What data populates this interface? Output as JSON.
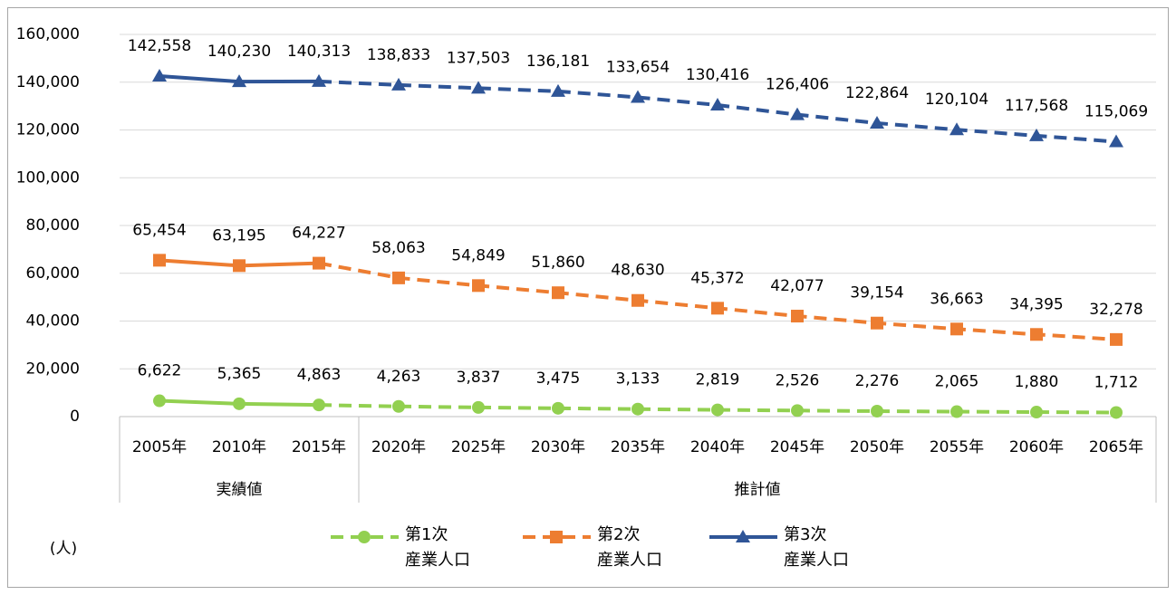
{
  "chart_data": {
    "type": "line",
    "categories": [
      "2005年",
      "2010年",
      "2015年",
      "2020年",
      "2025年",
      "2030年",
      "2035年",
      "2040年",
      "2045年",
      "2050年",
      "2055年",
      "2060年",
      "2065年"
    ],
    "groups": [
      {
        "label": "実績値",
        "count": 3
      },
      {
        "label": "推計値",
        "count": 10
      }
    ],
    "y_label": "(人)",
    "ylim": [
      0,
      160000
    ],
    "yticks": [
      0,
      {
        "value": 20000,
        "label": "20,000"
      },
      {
        "value": 40000,
        "label": "40,000"
      },
      {
        "value": 60000,
        "label": "60,000"
      },
      {
        "value": 80000,
        "label": "80,000"
      },
      {
        "value": 100000,
        "label": "100,000"
      },
      {
        "value": 120000,
        "label": "120,000"
      },
      {
        "value": 140000,
        "label": "140,000"
      },
      {
        "value": 160000,
        "label": "160,000"
      }
    ],
    "grid": true,
    "series": [
      {
        "name": "第1次\n産業人口",
        "color": "#92d050",
        "marker": "circle",
        "values": [
          6622,
          5365,
          4863,
          4263,
          3837,
          3475,
          3133,
          2819,
          2526,
          2276,
          2065,
          1880,
          1712
        ],
        "value_labels": [
          "6,622",
          "5,365",
          "4,863",
          "4,263",
          "3,837",
          "3,475",
          "3,133",
          "2,819",
          "2,526",
          "2,276",
          "2,065",
          "1,880",
          "1,712"
        ]
      },
      {
        "name": "第2次\n産業人口",
        "color": "#ed7d31",
        "marker": "square",
        "values": [
          65454,
          63195,
          64227,
          58063,
          54849,
          51860,
          48630,
          45372,
          42077,
          39154,
          36663,
          34395,
          32278
        ],
        "value_labels": [
          "65,454",
          "63,195",
          "64,227",
          "58,063",
          "54,849",
          "51,860",
          "48,630",
          "45,372",
          "42,077",
          "39,154",
          "36,663",
          "34,395",
          "32,278"
        ]
      },
      {
        "name": "第3次\n産業人口",
        "color": "#2f5597",
        "marker": "triangle",
        "values": [
          142558,
          140230,
          140313,
          138833,
          137503,
          136181,
          133654,
          130416,
          126406,
          122864,
          120104,
          117568,
          115069
        ],
        "value_labels": [
          "142,558",
          "140,230",
          "140,313",
          "138,833",
          "137,503",
          "136,181",
          "133,654",
          "130,416",
          "126,406",
          "122,864",
          "120,104",
          "117,568",
          "115,069"
        ]
      }
    ]
  }
}
